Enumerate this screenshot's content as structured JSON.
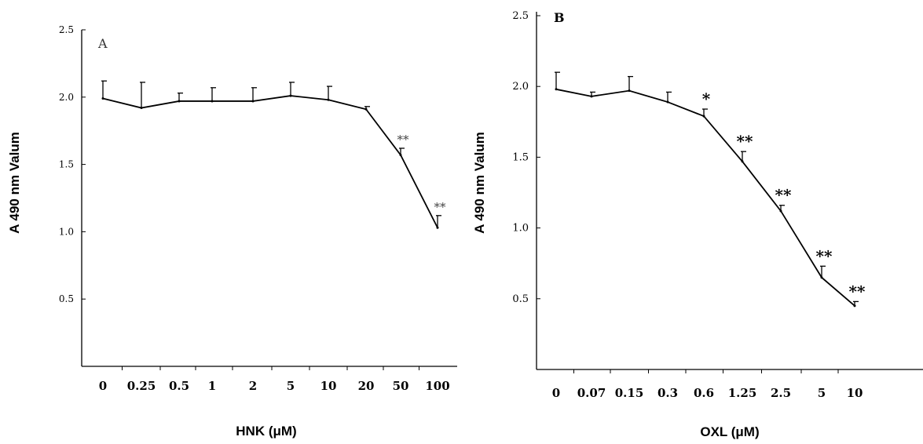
{
  "chart_data": [
    {
      "type": "line",
      "panel_label": "A",
      "xlabel": "HNK (μM)",
      "ylabel": "A 490 nm Valum",
      "categories": [
        "0",
        "0.25",
        "0.5",
        "1",
        "2",
        "5",
        "10",
        "20",
        "50",
        "100"
      ],
      "ylim": [
        0,
        2.5
      ],
      "yticks": [
        "0.5",
        "1.0",
        "1.5",
        "2.0",
        "2.5"
      ],
      "grid": false,
      "series": [
        {
          "values": [
            1.99,
            1.92,
            1.97,
            1.97,
            1.97,
            2.01,
            1.98,
            1.91,
            1.57,
            1.03
          ],
          "error_upper": [
            0.13,
            0.19,
            0.06,
            0.1,
            0.1,
            0.1,
            0.1,
            0.02,
            0.05,
            0.09
          ],
          "significance": [
            "",
            "",
            "",
            "",
            "",
            "",
            "",
            "",
            "**",
            "**"
          ]
        }
      ]
    },
    {
      "type": "line",
      "panel_label": "B",
      "xlabel": "OXL (μM)",
      "ylabel": "A 490 nm Valum",
      "categories": [
        "0",
        "0.07",
        "0.15",
        "0.3",
        "0.6",
        "1.25",
        "2.5",
        "5",
        "10"
      ],
      "ylim": [
        0,
        2.5
      ],
      "yticks": [
        "0.5",
        "1.0",
        "1.5",
        "2.0",
        "2.5"
      ],
      "grid": false,
      "series": [
        {
          "values": [
            1.98,
            1.93,
            1.97,
            1.89,
            1.79,
            1.47,
            1.12,
            0.65,
            0.45
          ],
          "error_upper": [
            0.12,
            0.03,
            0.1,
            0.07,
            0.05,
            0.07,
            0.04,
            0.08,
            0.03
          ],
          "significance": [
            "",
            "",
            "",
            "",
            "*",
            "**",
            "**",
            "**",
            "**"
          ]
        }
      ]
    }
  ]
}
